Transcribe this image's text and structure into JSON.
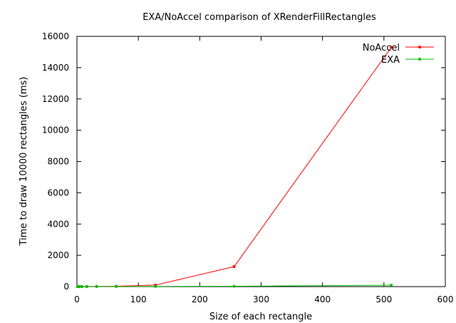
{
  "chart_data": {
    "type": "line",
    "title": "EXA/NoAccel comparison of XRenderFillRectangles",
    "xlabel": "Size of each rectangle",
    "ylabel": "Time to draw 10000 rectangles (ms)",
    "xlim": [
      0,
      600
    ],
    "ylim": [
      0,
      16000
    ],
    "xticks": [
      0,
      100,
      200,
      300,
      400,
      500,
      600
    ],
    "yticks": [
      0,
      2000,
      4000,
      6000,
      8000,
      10000,
      12000,
      14000,
      16000
    ],
    "grid": false,
    "legend_position": "top-right",
    "series": [
      {
        "name": "NoAccel",
        "color": "#ff0000",
        "marker": "dot",
        "x": [
          1,
          2,
          4,
          8,
          16,
          32,
          64,
          128,
          256,
          512
        ],
        "y": [
          3,
          4,
          5,
          6,
          8,
          12,
          25,
          100,
          1280,
          15300
        ]
      },
      {
        "name": "EXA",
        "color": "#00c000",
        "marker": "dot",
        "x": [
          1,
          2,
          4,
          8,
          16,
          32,
          64,
          128,
          256,
          512
        ],
        "y": [
          2,
          2,
          3,
          3,
          3,
          4,
          6,
          12,
          25,
          90
        ]
      }
    ]
  }
}
